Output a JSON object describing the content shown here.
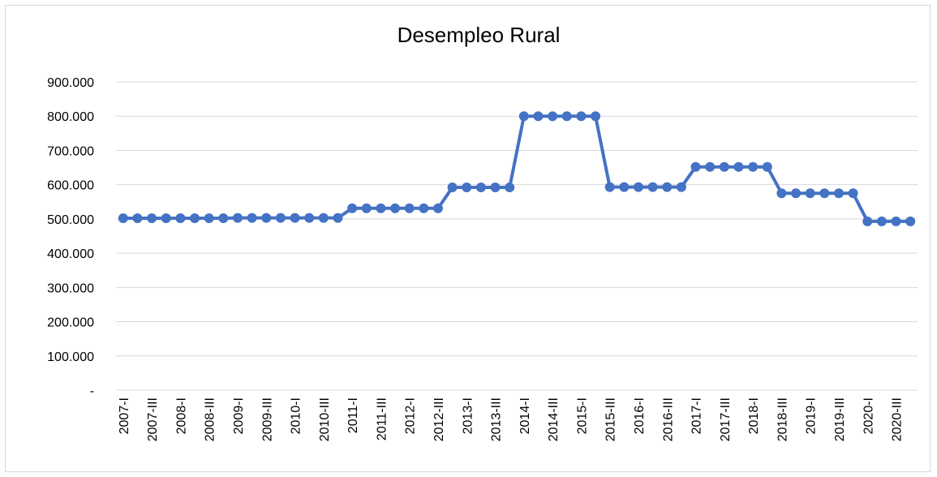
{
  "chart_data": {
    "type": "line",
    "title": "Desempleo Rural",
    "categories": [
      "2007-I",
      null,
      "2007-III",
      null,
      "2008-I",
      null,
      "2008-III",
      null,
      "2009-I",
      null,
      "2009-III",
      null,
      "2010-I",
      null,
      "2010-III",
      null,
      "2011-I",
      null,
      "2011-III",
      null,
      "2012-I",
      null,
      "2012-III",
      null,
      "2013-I",
      null,
      "2013-III",
      null,
      "2014-I",
      null,
      "2014-III",
      null,
      "2015-I",
      null,
      "2015-III",
      null,
      "2016-I",
      null,
      "2016-III",
      null,
      "2017-I",
      null,
      "2017-III",
      null,
      "2018-I",
      null,
      "2018-III",
      null,
      "2019-I",
      null,
      "2019-III",
      null,
      "2020-I",
      null,
      "2020-III",
      null
    ],
    "series": [
      {
        "name": "Desempleo Rural",
        "color": "#4472c4",
        "values": [
          502000,
          502000,
          502000,
          502000,
          502000,
          502000,
          502000,
          502000,
          503000,
          503000,
          503000,
          503000,
          503000,
          503000,
          503000,
          503000,
          531000,
          531000,
          531000,
          531000,
          531000,
          531000,
          531000,
          592000,
          592000,
          592000,
          592000,
          592000,
          800000,
          800000,
          800000,
          800000,
          800000,
          800000,
          593000,
          593000,
          593000,
          593000,
          593000,
          593000,
          652000,
          652000,
          652000,
          652000,
          652000,
          652000,
          575000,
          575000,
          575000,
          575000,
          575000,
          575000,
          493000,
          493000,
          493000,
          493000
        ]
      }
    ],
    "ylim": [
      0,
      900000
    ],
    "yticks": [
      {
        "value": 0,
        "label": "-"
      },
      {
        "value": 100000,
        "label": "100.000"
      },
      {
        "value": 200000,
        "label": "200.000"
      },
      {
        "value": 300000,
        "label": "300.000"
      },
      {
        "value": 400000,
        "label": "400.000"
      },
      {
        "value": 500000,
        "label": "500.000"
      },
      {
        "value": 600000,
        "label": "600.000"
      },
      {
        "value": 700000,
        "label": "700.000"
      },
      {
        "value": 800000,
        "label": "800.000"
      },
      {
        "value": 900000,
        "label": "900.000"
      }
    ],
    "grid": true
  }
}
